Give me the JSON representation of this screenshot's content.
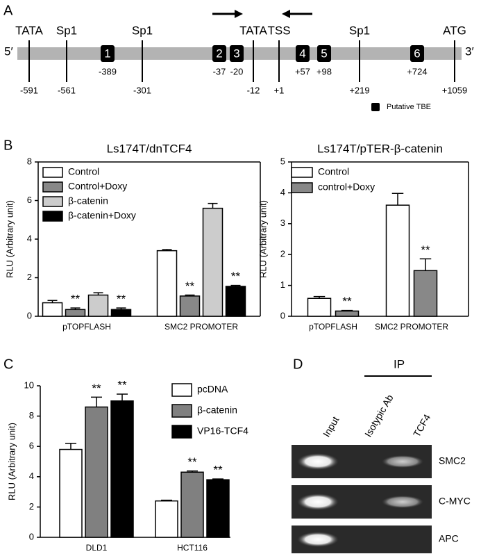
{
  "panel_labels": [
    "A",
    "B",
    "C",
    "D"
  ],
  "promoter": {
    "five_prime": "5′",
    "three_prime": "3′",
    "legend": "Putative TBE",
    "sites": [
      {
        "label": "TATA",
        "position": "-591"
      },
      {
        "label": "Sp1",
        "position": "-561"
      },
      {
        "label": "Sp1",
        "position": "-301"
      },
      {
        "label": "TATA",
        "position": "-12"
      },
      {
        "label": "TSS",
        "position": "+1"
      },
      {
        "label": "Sp1",
        "position": "+219"
      },
      {
        "label": "ATG",
        "position": "+1059"
      }
    ],
    "tbe": [
      {
        "number": "1",
        "position": "-389"
      },
      {
        "number": "2",
        "position": "-37"
      },
      {
        "number": "3",
        "position": "-20"
      },
      {
        "number": "4",
        "position": "+57"
      },
      {
        "number": "5",
        "position": "+98"
      },
      {
        "number": "6",
        "position": "+724"
      }
    ]
  },
  "chart_data": [
    {
      "type": "bar",
      "title": "Ls174T/dnTCF4",
      "y_label": "RLU (Arbitrary unit)",
      "frame": true,
      "categories": [
        "pTOPFLASH",
        "SMC2 PROMOTER"
      ],
      "ylim": [
        0,
        8
      ],
      "yticks": [
        0,
        2,
        4,
        6,
        8
      ],
      "series": [
        {
          "name": "Control",
          "color": "#ffffff",
          "values": [
            0.7,
            3.4
          ],
          "errors": [
            0.12,
            0.06
          ],
          "significance": [
            null,
            null
          ]
        },
        {
          "name": "Control+Doxy",
          "color": "#888888",
          "values": [
            0.35,
            1.05
          ],
          "errors": [
            0.08,
            0.05
          ],
          "significance": [
            "**",
            "**"
          ]
        },
        {
          "name": "β-catenin",
          "color": "#cccccc",
          "values": [
            1.1,
            5.6
          ],
          "errors": [
            0.12,
            0.25
          ],
          "significance": [
            null,
            null
          ]
        },
        {
          "name": "β-catenin+Doxy",
          "color": "#000000",
          "values": [
            0.35,
            1.55
          ],
          "errors": [
            0.08,
            0.05
          ],
          "significance": [
            "**",
            "**"
          ]
        }
      ]
    },
    {
      "type": "bar",
      "title": "Ls174T/pTER-β-catenin",
      "y_label": "RLU (Arbitrary unit)",
      "frame": true,
      "categories": [
        "pTOPFLASH",
        "SMC2 PROMOTER"
      ],
      "ylim": [
        0,
        5
      ],
      "yticks": [
        0,
        1,
        2,
        3,
        4,
        5
      ],
      "series": [
        {
          "name": "Control",
          "color": "#ffffff",
          "values": [
            0.58,
            3.6
          ],
          "errors": [
            0.06,
            0.38
          ],
          "significance": [
            null,
            null
          ]
        },
        {
          "name": "control+Doxy",
          "color": "#888888",
          "values": [
            0.17,
            1.48
          ],
          "errors": [
            0.02,
            0.38
          ],
          "significance": [
            "**",
            "**"
          ]
        }
      ]
    },
    {
      "type": "bar",
      "y_label": "RLU (Arbitrary unit)",
      "frame": false,
      "categories": [
        "DLD1",
        "HCT116"
      ],
      "ylim": [
        0,
        10
      ],
      "yticks": [
        0,
        2,
        4,
        6,
        8,
        10
      ],
      "series": [
        {
          "name": "pcDNA",
          "color": "#ffffff",
          "values": [
            5.8,
            2.4
          ],
          "errors": [
            0.4,
            0.05
          ],
          "significance": [
            null,
            null
          ]
        },
        {
          "name": "β-catenin",
          "color": "#808080",
          "values": [
            8.6,
            4.3
          ],
          "errors": [
            0.65,
            0.08
          ],
          "significance": [
            "**",
            "**"
          ]
        },
        {
          "name": "VP16-TCF4",
          "color": "#000000",
          "values": [
            9.0,
            3.8
          ],
          "errors": [
            0.45,
            0.05
          ],
          "significance": [
            "**",
            "**"
          ]
        }
      ]
    }
  ],
  "gel": {
    "ip_label": "IP",
    "lanes": [
      "Input",
      "Isotypic Ab",
      "TCF4"
    ],
    "rows": [
      "SMC2",
      "C-MYC",
      "APC"
    ]
  }
}
